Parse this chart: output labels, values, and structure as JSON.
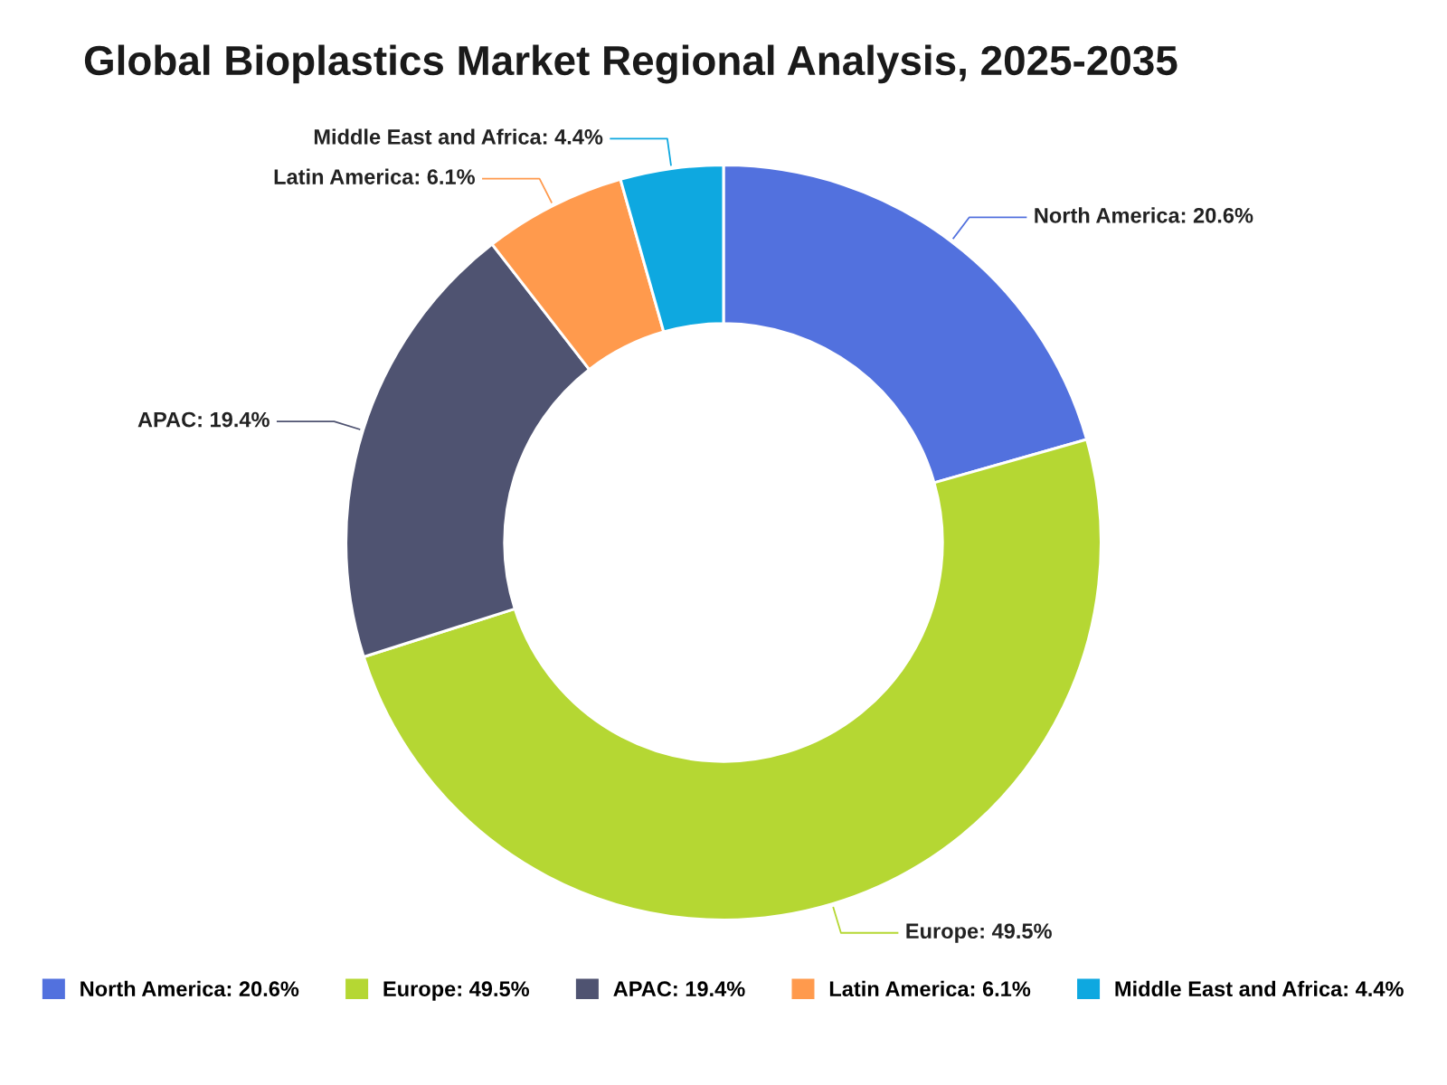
{
  "chart_data": {
    "type": "donut",
    "title": "Global Bioplastics Market Regional Analysis, 2025-2035",
    "categories": [
      "North America",
      "Europe",
      "APAC",
      "Latin America",
      "Middle East and Africa"
    ],
    "values": [
      20.6,
      49.5,
      19.4,
      6.1,
      4.4
    ],
    "colors": [
      "#5271de",
      "#b5d733",
      "#4f5371",
      "#ff9a4d",
      "#0ea8e0"
    ],
    "value_labels": [
      "20.6%",
      "49.5%",
      "19.4%",
      "6.1%",
      "4.4%"
    ],
    "legend": "bottom"
  }
}
